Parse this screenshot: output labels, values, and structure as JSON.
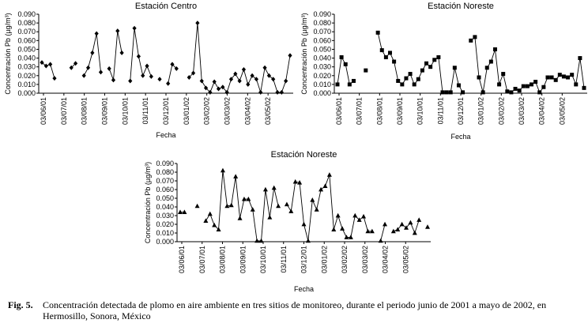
{
  "chart_data": [
    {
      "type": "line",
      "title": "Estación Centro",
      "xlabel": "Fecha",
      "ylabel": "Concentración Pb (µg/m³)",
      "marker": "diamond",
      "ylim": [
        0,
        0.09
      ],
      "yticks": [
        "0.000",
        "0.010",
        "0.020",
        "0.030",
        "0.040",
        "0.050",
        "0.060",
        "0.070",
        "0.080",
        "0.090"
      ],
      "xticks": [
        "03/06/01",
        "03/07/01",
        "03/08/01",
        "03/09/01",
        "03/10/01",
        "03/11/01",
        "03/12/01",
        "03/01/02",
        "03/02/02",
        "03/03/02",
        "03/04/02",
        "03/05/02"
      ],
      "series": [
        {
          "values": [
            0.035,
            0.031,
            0.033,
            0.017,
            null,
            null,
            null,
            0.029,
            0.034,
            null,
            0.02,
            0.029,
            0.046,
            0.068,
            0.024,
            null,
            0.028,
            0.015,
            0.071,
            0.046,
            null,
            0.014,
            0.074,
            0.042,
            0.02,
            0.031,
            0.019,
            null,
            0.016,
            null,
            0.011,
            0.033,
            0.028,
            null,
            null,
            0.018,
            0.023,
            0.08,
            0.014,
            0.006,
            0.001,
            0.013,
            0.005,
            0.007,
            0.001,
            0.016,
            0.022,
            0.014,
            0.027,
            0.01,
            0.02,
            0.016,
            0.001,
            0.029,
            0.02,
            0.016,
            0.001,
            0.001,
            0.014,
            0.043
          ]
        }
      ]
    },
    {
      "type": "line",
      "title": "Estación Noreste",
      "xlabel": "Fecha",
      "ylabel": "Concentración Pb (µg/m³)",
      "marker": "square",
      "ylim": [
        0,
        0.09
      ],
      "yticks": [
        "0.000",
        "0.010",
        "0.020",
        "0.030",
        "0.040",
        "0.050",
        "0.060",
        "0.070",
        "0.080",
        "0.090"
      ],
      "xticks": [
        "03/06/01",
        "03/07/01",
        "03/08/01",
        "03/09/01",
        "03/10/01",
        "03/11/01",
        "03/12/01",
        "03/01/02",
        "03/02/02",
        "03/03/02",
        "03/04/02",
        "03/05/02"
      ],
      "series": [
        {
          "values": [
            0.01,
            0.041,
            0.033,
            0.01,
            0.014,
            null,
            null,
            0.026,
            null,
            null,
            0.069,
            0.049,
            0.041,
            0.046,
            0.036,
            0.014,
            0.01,
            0.017,
            0.022,
            0.01,
            0.016,
            0.026,
            0.034,
            0.03,
            0.038,
            0.041,
            0.001,
            0.001,
            0.001,
            0.029,
            0.009,
            0.001,
            null,
            0.06,
            0.064,
            0.018,
            0.001,
            0.029,
            0.036,
            0.05,
            0.01,
            0.022,
            0.002,
            0.001,
            0.005,
            0.003,
            0.008,
            0.008,
            0.01,
            0.013,
            0.001,
            0.007,
            0.018,
            0.018,
            0.015,
            0.021,
            0.019,
            0.018,
            0.021,
            0.01,
            0.04,
            0.006
          ]
        }
      ]
    },
    {
      "type": "line",
      "title": "Estación Noreste",
      "xlabel": "Fecha",
      "ylabel": "Concentración Pb (µg/m³)",
      "marker": "triangle",
      "ylim": [
        0,
        0.09
      ],
      "yticks": [
        "0.000",
        "0.010",
        "0.020",
        "0.030",
        "0.040",
        "0.050",
        "0.060",
        "0.070",
        "0.080",
        "0.090"
      ],
      "xticks": [
        "03/06/01",
        "03/07/01",
        "03/08/01",
        "03/09/01",
        "03/10/01",
        "03/11/01",
        "03/12/01",
        "03/01/02",
        "03/02/02",
        "03/03/02",
        "03/04/02",
        "03/05/02"
      ],
      "series": [
        {
          "values": [
            0.034,
            0.034,
            null,
            null,
            0.041,
            null,
            0.024,
            0.032,
            0.019,
            0.014,
            0.082,
            0.041,
            0.042,
            0.075,
            0.027,
            0.049,
            0.049,
            0.037,
            0.001,
            0.001,
            0.06,
            0.028,
            0.062,
            0.041,
            null,
            0.043,
            0.035,
            0.069,
            0.068,
            0.02,
            0.001,
            0.048,
            0.037,
            0.06,
            0.064,
            0.077,
            0.014,
            0.03,
            0.015,
            0.005,
            0.005,
            0.03,
            0.025,
            0.029,
            0.012,
            0.012,
            null,
            0.001,
            0.02,
            null,
            0.012,
            0.014,
            0.02,
            0.016,
            0.022,
            0.01,
            0.025,
            null,
            0.017
          ]
        }
      ]
    }
  ],
  "caption": {
    "label": "Fig. 5.",
    "text": "Concentración detectada de plomo en aire ambiente en tres sitios de monitoreo, durante el periodo junio de 2001 a mayo de 2002, en Hermosillo, Sonora, México"
  }
}
